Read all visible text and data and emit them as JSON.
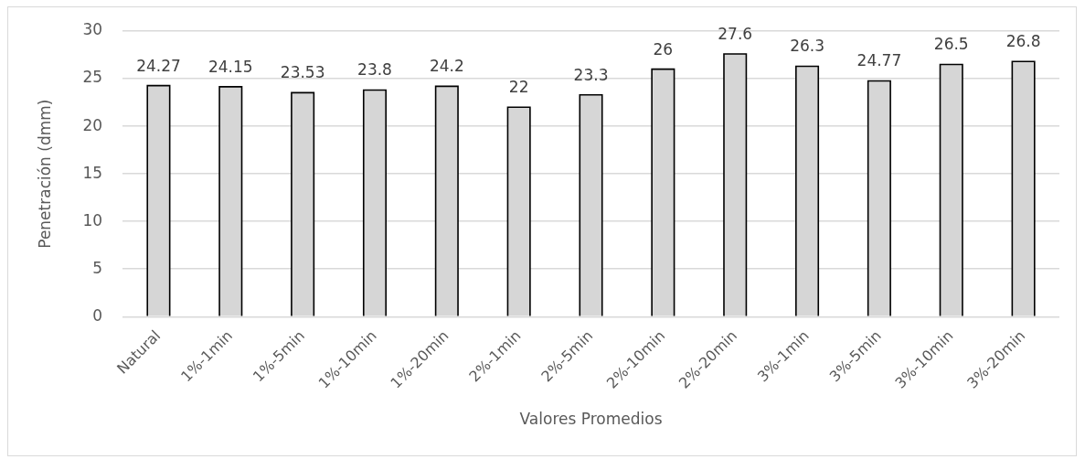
{
  "chart_data": {
    "type": "bar",
    "xlabel": "Valores Promedios",
    "ylabel": "Penetración (dmm)",
    "categories": [
      "Natural",
      "1%-1min",
      "1%-5min",
      "1%-10min",
      "1%-20min",
      "2%-1min",
      "2%-5min",
      "2%-10min",
      "2%-20min",
      "3%-1min",
      "3%-5min",
      "3%-10min",
      "3%-20min"
    ],
    "values": [
      24.27,
      24.15,
      23.53,
      23.8,
      24.2,
      22,
      23.3,
      26,
      27.6,
      26.3,
      24.77,
      26.5,
      26.8
    ],
    "color": "#d6d6d6",
    "ylim": [
      0,
      30
    ],
    "yticks": [
      0,
      5,
      10,
      15,
      20,
      25,
      30
    ],
    "grid": "y",
    "data_labels": true
  }
}
